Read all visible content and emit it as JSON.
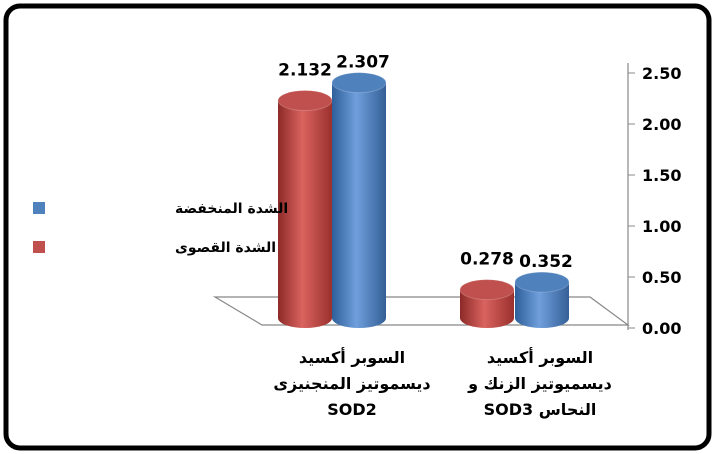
{
  "chart_data": {
    "type": "bar3d",
    "categories": [
      "السوبر أكسيد ديسموتيز المنجنيزى SOD2",
      "السوبر أكسيد ديسميوتيز الزنك و النحاس SOD3"
    ],
    "series": [
      {
        "name": "الشدة القصوى",
        "color": "#c0504d",
        "values": [
          2.132,
          0.278
        ]
      },
      {
        "name": "الشدة المنخفضة",
        "color": "#4f81bd",
        "values": [
          2.307,
          0.352
        ]
      }
    ],
    "ylim": [
      0,
      2.5
    ],
    "yticks": [
      {
        "value": 0,
        "label": "0.00"
      },
      {
        "value": 0.5,
        "label": "0.50"
      },
      {
        "value": 1,
        "label": "1.00"
      },
      {
        "value": 1.5,
        "label": "1.50"
      },
      {
        "value": 2,
        "label": "2.00"
      },
      {
        "value": 2.5,
        "label": "2.50"
      }
    ],
    "legend": "left"
  }
}
